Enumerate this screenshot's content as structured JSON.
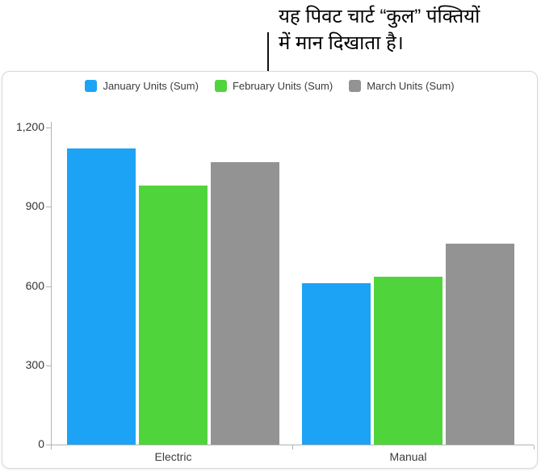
{
  "callout": {
    "line1": "यह पिवट चार्ट “कुल” पंक्तियों",
    "line2": "में मान दिखाता है।"
  },
  "chart_data": {
    "type": "bar",
    "title": "",
    "categories": [
      "Electric",
      "Manual"
    ],
    "series": [
      {
        "name": "January Units (Sum)",
        "color": "#1ca3f6",
        "values": [
          1120,
          610
        ]
      },
      {
        "name": "February Units (Sum)",
        "color": "#50d43b",
        "values": [
          980,
          635
        ]
      },
      {
        "name": "March Units (Sum)",
        "color": "#939393",
        "values": [
          1070,
          760
        ]
      }
    ],
    "xlabel": "",
    "ylabel": "",
    "ylim": [
      0,
      1200
    ],
    "yticks": [
      "0",
      "300",
      "600",
      "900",
      "1,200"
    ],
    "ytick_values": [
      0,
      300,
      600,
      900,
      1200
    ],
    "legend_position": "top",
    "grid": false
  }
}
